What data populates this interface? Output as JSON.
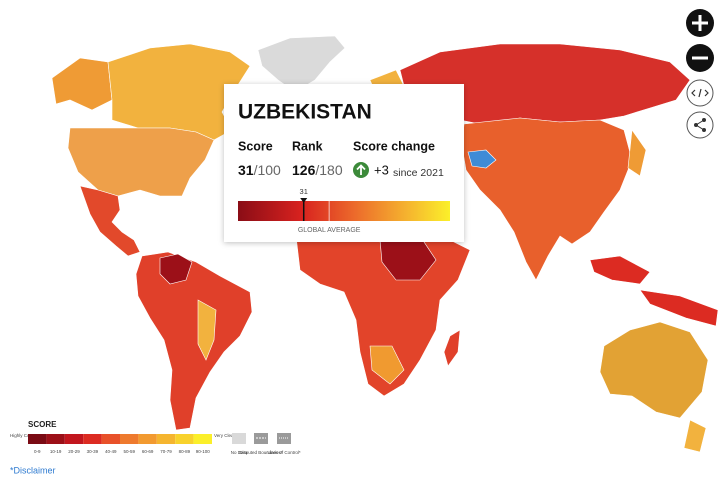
{
  "popup": {
    "country": "UZBEKISTAN",
    "score_label": "Score",
    "score": 31,
    "score_max_label": "/100",
    "rank_label": "Rank",
    "rank": 126,
    "rank_max_label": "/180",
    "change_label": "Score change",
    "change": "+3",
    "change_since": "since 2021",
    "gradient_range": [
      0,
      100
    ],
    "global_average": 43,
    "global_average_label": "GLOBAL AVERAGE"
  },
  "legend": {
    "title": "SCORE",
    "low_label": "Highly Corrupt",
    "high_label": "Very Clean",
    "bins": [
      {
        "label": "0-9",
        "color": "#7a0b14"
      },
      {
        "label": "10-19",
        "color": "#9c1018"
      },
      {
        "label": "20-29",
        "color": "#c2161e"
      },
      {
        "label": "30-39",
        "color": "#dc2b22"
      },
      {
        "label": "40-49",
        "color": "#e8512a"
      },
      {
        "label": "50-59",
        "color": "#ee7a2e"
      },
      {
        "label": "60-69",
        "color": "#f29a30"
      },
      {
        "label": "70-79",
        "color": "#f5b52f"
      },
      {
        "label": "80-89",
        "color": "#f8d22c"
      },
      {
        "label": "90-100",
        "color": "#fbef2a"
      }
    ],
    "no_data_label": "No Data",
    "disputed_label": "Disputed Boundaries*",
    "control_label": "Lines of Control*"
  },
  "disclaimer": "*Disclaimer"
}
